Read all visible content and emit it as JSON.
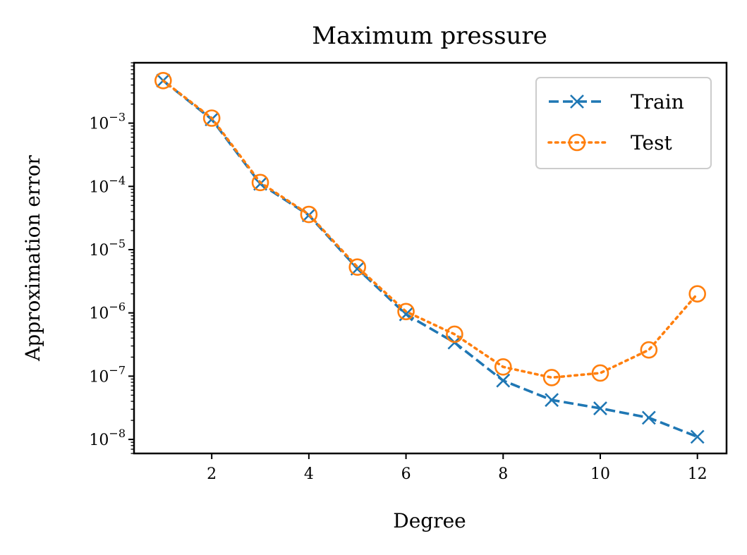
{
  "chart_data": {
    "type": "line",
    "title": "Maximum pressure",
    "xlabel": "Degree",
    "ylabel": "Approximation error",
    "yscale": "log",
    "xlim": [
      0.4,
      12.6
    ],
    "ylim": [
      6e-09,
      0.009
    ],
    "xticks": [
      2,
      4,
      6,
      8,
      10,
      12
    ],
    "xtick_labels": [
      "2",
      "4",
      "6",
      "8",
      "10",
      "12"
    ],
    "yticks": [
      1e-08,
      1e-07,
      1e-06,
      1e-05,
      0.0001,
      0.001
    ],
    "ytick_labels": [
      {
        "base": "10",
        "exp": "−8"
      },
      {
        "base": "10",
        "exp": "−7"
      },
      {
        "base": "10",
        "exp": "−6"
      },
      {
        "base": "10",
        "exp": "−5"
      },
      {
        "base": "10",
        "exp": "−4"
      },
      {
        "base": "10",
        "exp": "−3"
      }
    ],
    "grid": false,
    "legend_position": "top-right",
    "x": [
      1,
      2,
      3,
      4,
      5,
      6,
      7,
      8,
      9,
      10,
      11,
      12
    ],
    "series": [
      {
        "name": "Train",
        "color": "#1f77b4",
        "linestyle": "dashed",
        "marker": "x",
        "values": [
          0.0047,
          0.00115,
          0.00011,
          3.5e-05,
          5e-06,
          9.5e-07,
          3.4e-07,
          8.5e-08,
          4.2e-08,
          3.1e-08,
          2.2e-08,
          1.1e-08
        ]
      },
      {
        "name": "Test",
        "color": "#ff7f0e",
        "linestyle": "dotted",
        "marker": "o",
        "values": [
          0.0047,
          0.0012,
          0.000115,
          3.6e-05,
          5.3e-06,
          1.05e-06,
          4.6e-07,
          1.4e-07,
          9.5e-08,
          1.12e-07,
          2.6e-07,
          2e-06
        ]
      }
    ]
  }
}
